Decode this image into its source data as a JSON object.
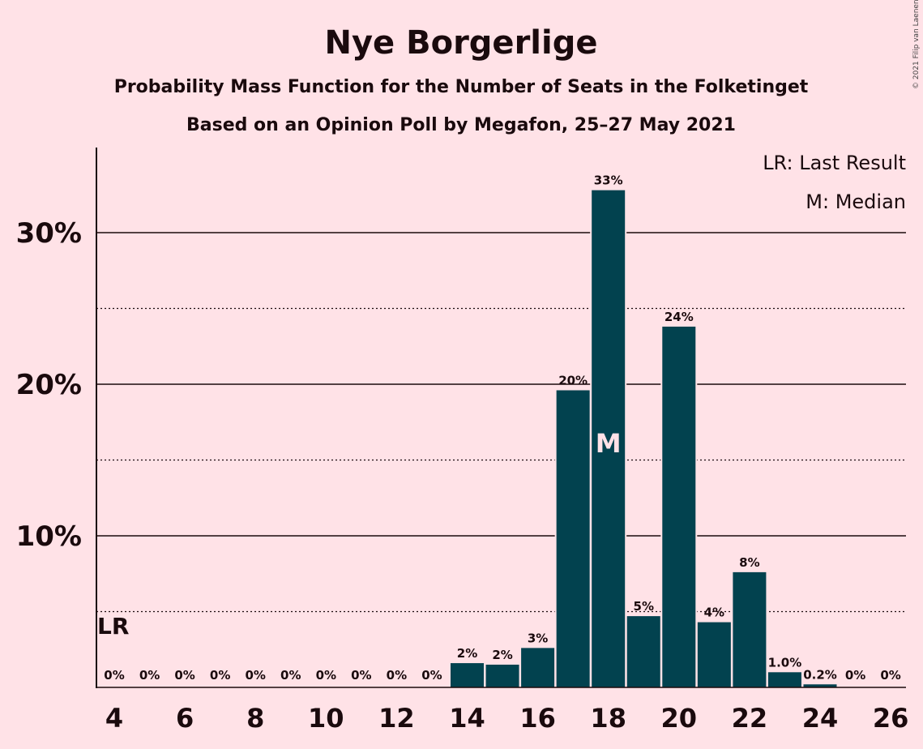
{
  "chart_data": {
    "type": "bar",
    "title": "Nye Borgerlige",
    "subtitle": "Probability Mass Function for the Number of Seats in the Folketinget",
    "subtitle2": "Based on an Opinion Poll by Megafon, 25–27 May 2021",
    "copyright": "© 2021 Filip van Laenen",
    "x": [
      4,
      5,
      6,
      7,
      8,
      9,
      10,
      11,
      12,
      13,
      14,
      15,
      16,
      17,
      18,
      19,
      20,
      21,
      22,
      23,
      24,
      25,
      26
    ],
    "values": [
      0,
      0,
      0,
      0,
      0,
      0,
      0,
      0,
      0,
      0,
      1.6,
      1.5,
      2.6,
      19.6,
      32.8,
      4.7,
      23.8,
      4.3,
      7.6,
      1.0,
      0.2,
      0,
      0
    ],
    "data_labels": [
      "0%",
      "0%",
      "0%",
      "0%",
      "0%",
      "0%",
      "0%",
      "0%",
      "0%",
      "0%",
      "2%",
      "2%",
      "3%",
      "20%",
      "33%",
      "5%",
      "24%",
      "4%",
      "8%",
      "1.0%",
      "0.2%",
      "0%",
      "0%"
    ],
    "x_ticks": [
      "4",
      "6",
      "8",
      "10",
      "12",
      "14",
      "16",
      "18",
      "20",
      "22",
      "24",
      "26"
    ],
    "y_ticks": [
      "10%",
      "20%",
      "30%"
    ],
    "ylim": [
      0,
      35
    ],
    "last_result": 4,
    "median": 18,
    "legend": [
      "LR: Last Result",
      "M: Median"
    ],
    "lr_label": "LR",
    "median_label": "M",
    "bar_color": "#02424F",
    "background": "#FFE2E7"
  }
}
